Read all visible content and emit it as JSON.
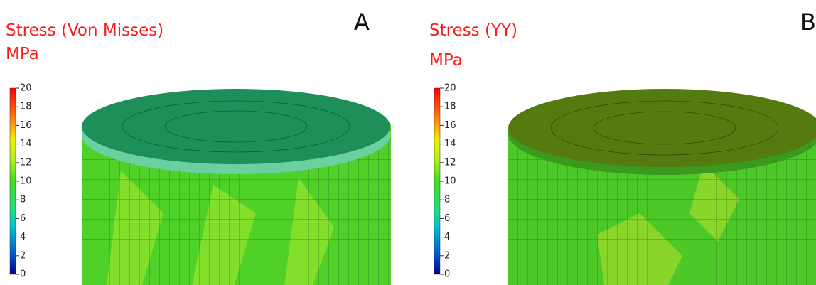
{
  "panels": [
    {
      "title": "Stress (Von Misses)",
      "unit": "MPa",
      "letter": "A",
      "colorbar_ticks": [
        0,
        2,
        4,
        6,
        8,
        10,
        12,
        14,
        16,
        18,
        20
      ]
    },
    {
      "title": "Stress (YY)",
      "unit": "MPa",
      "letter": "B",
      "colorbar_ticks": [
        0,
        2,
        4,
        6,
        8,
        10,
        12,
        14,
        16,
        18,
        20
      ]
    }
  ]
}
